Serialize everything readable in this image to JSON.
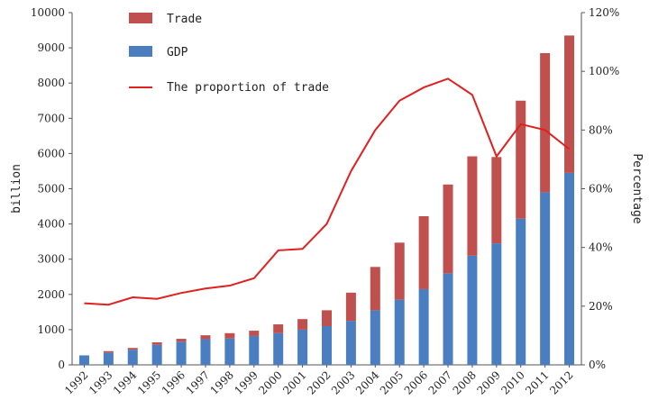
{
  "chart_data": {
    "type": "bar",
    "stacked": true,
    "x": [
      "1992",
      "1993",
      "1994",
      "1995",
      "1996",
      "1997",
      "1998",
      "1999",
      "2000",
      "2001",
      "2002",
      "2003",
      "2004",
      "2005",
      "2006",
      "2007",
      "2008",
      "2009",
      "2010",
      "2011",
      "2012"
    ],
    "series": [
      {
        "name": "GDP",
        "kind": "bar",
        "axis": "left",
        "color": "#4a7ec1",
        "values": [
          270,
          350,
          430,
          570,
          660,
          730,
          750,
          820,
          900,
          1000,
          1100,
          1250,
          1550,
          1850,
          2150,
          2600,
          3100,
          3450,
          4150,
          4900,
          5450
        ]
      },
      {
        "name": "Trade",
        "kind": "bar",
        "axis": "left",
        "color": "#c0504d",
        "values": [
          0,
          40,
          50,
          70,
          80,
          110,
          150,
          150,
          250,
          300,
          450,
          800,
          1230,
          1620,
          2070,
          2520,
          2820,
          2450,
          3350,
          3950,
          3900
        ]
      },
      {
        "name": "The proportion of trade",
        "kind": "line",
        "axis": "right",
        "color": "#e02020",
        "values": [
          21,
          20.5,
          23,
          22.5,
          24.5,
          26,
          27,
          29.5,
          39,
          39.5,
          48,
          66,
          80,
          90,
          94.5,
          97.5,
          92,
          71,
          82,
          80,
          73.5
        ]
      }
    ],
    "ylabel": "billion",
    "y2label": "Percentage",
    "ylim": [
      0,
      10000
    ],
    "y2lim": [
      0,
      120
    ],
    "yticks": [
      "0",
      "1000",
      "2000",
      "3000",
      "4000",
      "5000",
      "6000",
      "7000",
      "8000",
      "9000",
      "10000"
    ],
    "y2ticks": [
      "0%",
      "20%",
      "40%",
      "60%",
      "80%",
      "100%",
      "120%"
    ],
    "legend_position": "top-left",
    "grid": false
  }
}
